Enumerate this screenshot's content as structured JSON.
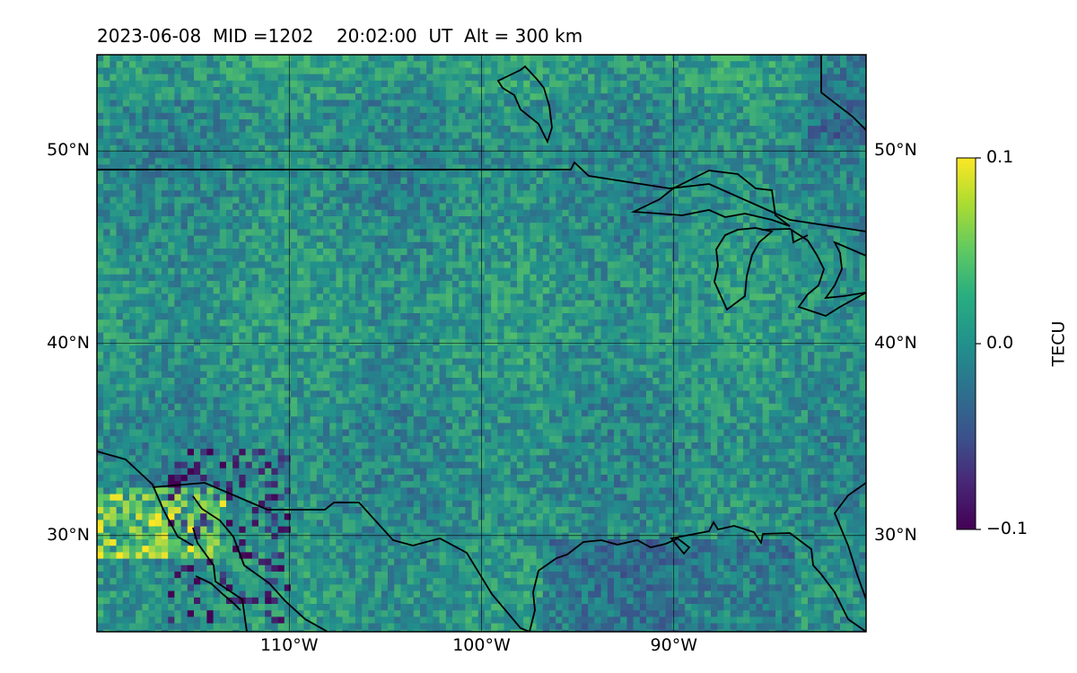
{
  "title": "2023-06-08  MID =1202    20:02:00  UT  Alt = 300 km",
  "map": {
    "lon_range": [
      -120,
      -80
    ],
    "lat_range": [
      25,
      55
    ],
    "lat_ticks": [
      {
        "value": 50,
        "label": "50°N"
      },
      {
        "value": 40,
        "label": "40°N"
      },
      {
        "value": 30,
        "label": "30°N"
      }
    ],
    "lon_ticks": [
      {
        "value": -110,
        "label": "110°W"
      },
      {
        "value": -100,
        "label": "100°W"
      },
      {
        "value": -90,
        "label": "90°W"
      }
    ],
    "colormap": "viridis",
    "colors": [
      "#440154",
      "#3b528b",
      "#21918c",
      "#5ec962",
      "#fde725"
    ]
  },
  "colorbar": {
    "label": "TECU",
    "min": -0.1,
    "max": 0.1,
    "ticks": [
      {
        "value": 0.1,
        "label": "0.1"
      },
      {
        "value": 0.0,
        "label": "0.0"
      },
      {
        "value": -0.1,
        "label": "−0.1"
      }
    ]
  }
}
